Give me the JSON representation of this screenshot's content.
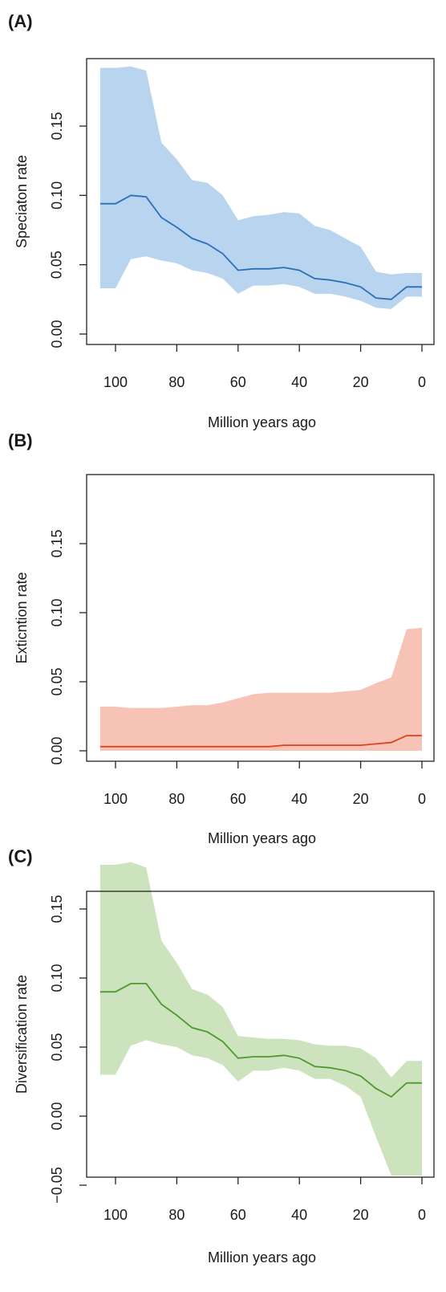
{
  "chart_data": [
    {
      "type": "area",
      "panel_label": "(A)",
      "ylabel": "Speciaton rate",
      "xlabel": "Million years ago",
      "xlim": [
        105,
        0
      ],
      "ylim": [
        0,
        0.19
      ],
      "xticks": [
        100,
        80,
        60,
        40,
        20,
        0
      ],
      "xtick_labels": [
        "100",
        "80",
        "60",
        "40",
        "20",
        "0"
      ],
      "yticks": [
        0.0,
        0.05,
        0.1,
        0.15
      ],
      "ytick_labels": [
        "0.00",
        "0.05",
        "0.10",
        "0.15"
      ],
      "colors": {
        "band": "#b8d4ee",
        "line": "#2a6fbb"
      },
      "series": [
        {
          "x": [
            105,
            100,
            95,
            90,
            85,
            80,
            75,
            70,
            65,
            60,
            55,
            50,
            45,
            40,
            35,
            30,
            25,
            20,
            15,
            10,
            5,
            0
          ],
          "mean": [
            0.094,
            0.094,
            0.1,
            0.099,
            0.084,
            0.077,
            0.069,
            0.065,
            0.058,
            0.046,
            0.047,
            0.047,
            0.048,
            0.046,
            0.04,
            0.039,
            0.037,
            0.034,
            0.026,
            0.025,
            0.034,
            0.034
          ],
          "lower": [
            0.033,
            0.033,
            0.054,
            0.056,
            0.053,
            0.051,
            0.046,
            0.044,
            0.04,
            0.029,
            0.035,
            0.035,
            0.036,
            0.034,
            0.029,
            0.029,
            0.027,
            0.024,
            0.019,
            0.018,
            0.027,
            0.027
          ],
          "upper": [
            0.192,
            0.192,
            0.193,
            0.19,
            0.138,
            0.126,
            0.111,
            0.109,
            0.1,
            0.082,
            0.085,
            0.086,
            0.088,
            0.087,
            0.078,
            0.075,
            0.069,
            0.063,
            0.045,
            0.043,
            0.044,
            0.044
          ]
        }
      ]
    },
    {
      "type": "area",
      "panel_label": "(B)",
      "ylabel": "Exticntion rate",
      "xlabel": "Million years ago",
      "xlim": [
        105,
        0
      ],
      "ylim": [
        0,
        0.19
      ],
      "xticks": [
        100,
        80,
        60,
        40,
        20,
        0
      ],
      "xtick_labels": [
        "100",
        "80",
        "60",
        "40",
        "20",
        "0"
      ],
      "yticks": [
        0.0,
        0.05,
        0.1,
        0.15
      ],
      "ytick_labels": [
        "0.00",
        "0.05",
        "0.10",
        "0.15"
      ],
      "colors": {
        "band": "#f6c3b6",
        "line": "#e0411e"
      },
      "series": [
        {
          "x": [
            105,
            100,
            95,
            90,
            85,
            80,
            75,
            70,
            65,
            60,
            55,
            50,
            45,
            40,
            35,
            30,
            25,
            20,
            15,
            10,
            5,
            0
          ],
          "mean": [
            0.003,
            0.003,
            0.003,
            0.003,
            0.003,
            0.003,
            0.003,
            0.003,
            0.003,
            0.003,
            0.003,
            0.003,
            0.004,
            0.004,
            0.004,
            0.004,
            0.004,
            0.004,
            0.005,
            0.006,
            0.011,
            0.011
          ],
          "lower": [
            0,
            0,
            0,
            0,
            0,
            0,
            0,
            0,
            0,
            0,
            0,
            0,
            0,
            0,
            0,
            0,
            0,
            0,
            0,
            0,
            0,
            0
          ],
          "upper": [
            0.032,
            0.032,
            0.031,
            0.031,
            0.031,
            0.032,
            0.033,
            0.033,
            0.035,
            0.038,
            0.041,
            0.042,
            0.042,
            0.042,
            0.042,
            0.042,
            0.043,
            0.044,
            0.049,
            0.053,
            0.088,
            0.089
          ]
        }
      ]
    },
    {
      "type": "area",
      "panel_label": "(C)",
      "ylabel": "Diversification rate",
      "xlabel": "Million years ago",
      "xlim": [
        105,
        0
      ],
      "ylim": [
        -0.055,
        0.185
      ],
      "xticks": [
        100,
        80,
        60,
        40,
        20,
        0
      ],
      "xtick_labels": [
        "100",
        "80",
        "60",
        "40",
        "20",
        "0"
      ],
      "yticks": [
        -0.05,
        0.0,
        0.05,
        0.1,
        0.15
      ],
      "ytick_labels": [
        "−0.05",
        "0.00",
        "0.05",
        "0.10",
        "0.15"
      ],
      "colors": {
        "band": "#cde3bd",
        "line": "#4e9a2c"
      },
      "series": [
        {
          "x": [
            105,
            100,
            95,
            90,
            85,
            80,
            75,
            70,
            65,
            60,
            55,
            50,
            45,
            40,
            35,
            30,
            25,
            20,
            15,
            10,
            5,
            0
          ],
          "mean": [
            0.09,
            0.09,
            0.096,
            0.096,
            0.081,
            0.073,
            0.064,
            0.061,
            0.054,
            0.042,
            0.043,
            0.043,
            0.044,
            0.042,
            0.036,
            0.035,
            0.033,
            0.029,
            0.02,
            0.014,
            0.024,
            0.024
          ],
          "lower": [
            0.03,
            0.03,
            0.051,
            0.055,
            0.052,
            0.05,
            0.044,
            0.042,
            0.037,
            0.025,
            0.033,
            0.033,
            0.035,
            0.033,
            0.027,
            0.027,
            0.022,
            0.014,
            -0.015,
            -0.043,
            -0.043,
            -0.043
          ],
          "upper": [
            0.182,
            0.182,
            0.184,
            0.18,
            0.127,
            0.111,
            0.092,
            0.088,
            0.079,
            0.058,
            0.057,
            0.056,
            0.056,
            0.055,
            0.052,
            0.051,
            0.051,
            0.049,
            0.042,
            0.028,
            0.04,
            0.04
          ]
        }
      ]
    }
  ]
}
